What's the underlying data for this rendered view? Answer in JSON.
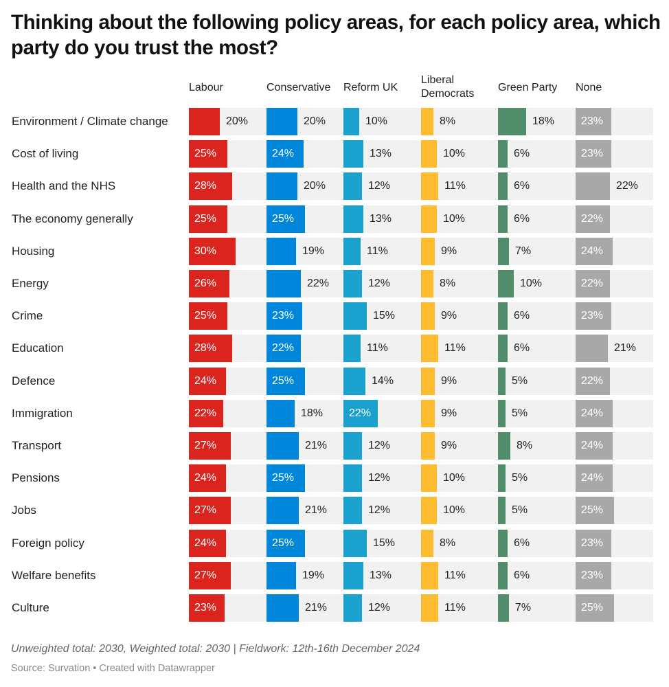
{
  "title": "Thinking about the following policy areas, for each policy area, which party do you trust the most?",
  "notes": "Unweighted total: 2030, Weighted total: 2030 | Fieldwork: 12th-16th December 2024",
  "source": "Source: Survation • Created with Datawrapper",
  "chart_data": {
    "type": "bar",
    "orientation": "horizontal",
    "layout": "small-multiples-columns",
    "title": "Thinking about the following policy areas, for each policy area, which party do you trust the most?",
    "xlabel": "",
    "ylabel": "",
    "unit": "%",
    "xlim": [
      0,
      50
    ],
    "grid": false,
    "legend": "column headers at top",
    "categories": [
      "Environment / Climate change",
      "Cost of living",
      "Health and the NHS",
      "The economy generally",
      "Housing",
      "Energy",
      "Crime",
      "Education",
      "Defence",
      "Immigration",
      "Transport",
      "Pensions",
      "Jobs",
      "Foreign policy",
      "Welfare benefits",
      "Culture"
    ],
    "series": [
      {
        "name": "Labour",
        "header": [
          "Labour"
        ],
        "color": "#dc241f",
        "values": [
          20,
          25,
          28,
          25,
          30,
          26,
          25,
          28,
          24,
          22,
          27,
          24,
          27,
          24,
          27,
          23
        ]
      },
      {
        "name": "Conservative",
        "header": [
          "Conservative"
        ],
        "color": "#0087dc",
        "values": [
          20,
          24,
          20,
          25,
          19,
          22,
          23,
          22,
          25,
          18,
          21,
          25,
          21,
          25,
          19,
          21
        ]
      },
      {
        "name": "Reform UK",
        "header": [
          "Reform UK"
        ],
        "color": "#1ba1cd",
        "values": [
          10,
          13,
          12,
          13,
          11,
          12,
          15,
          11,
          14,
          22,
          12,
          12,
          12,
          15,
          13,
          12
        ]
      },
      {
        "name": "Liberal Democrats",
        "header": [
          "Liberal",
          "Democrats"
        ],
        "color": "#fdbb30",
        "values": [
          8,
          10,
          11,
          10,
          9,
          8,
          9,
          11,
          9,
          9,
          9,
          10,
          10,
          8,
          11,
          11
        ]
      },
      {
        "name": "Green Party",
        "header": [
          "Green Party"
        ],
        "color": "#528d6b",
        "values": [
          18,
          6,
          6,
          6,
          7,
          10,
          6,
          6,
          5,
          5,
          8,
          5,
          5,
          6,
          6,
          7
        ]
      },
      {
        "name": "None",
        "header": [
          "None"
        ],
        "color": "#a8a8a8",
        "values": [
          23,
          23,
          22,
          22,
          24,
          22,
          23,
          21,
          22,
          24,
          24,
          24,
          25,
          23,
          23,
          25
        ]
      }
    ],
    "inside_label": [
      [
        false,
        true,
        true,
        true,
        true,
        true,
        true,
        true,
        true,
        true,
        true,
        true,
        true,
        true,
        true,
        true
      ],
      [
        false,
        true,
        false,
        true,
        false,
        false,
        true,
        true,
        true,
        false,
        false,
        true,
        false,
        true,
        false,
        false
      ],
      [
        false,
        false,
        false,
        false,
        false,
        false,
        false,
        false,
        false,
        true,
        false,
        false,
        false,
        false,
        false,
        false
      ],
      [
        false,
        false,
        false,
        false,
        false,
        false,
        false,
        false,
        false,
        false,
        false,
        false,
        false,
        false,
        false,
        false
      ],
      [
        false,
        false,
        false,
        false,
        false,
        false,
        false,
        false,
        false,
        false,
        false,
        false,
        false,
        false,
        false,
        false
      ],
      [
        true,
        true,
        false,
        true,
        true,
        true,
        true,
        false,
        true,
        true,
        true,
        true,
        true,
        true,
        true,
        true
      ]
    ]
  }
}
